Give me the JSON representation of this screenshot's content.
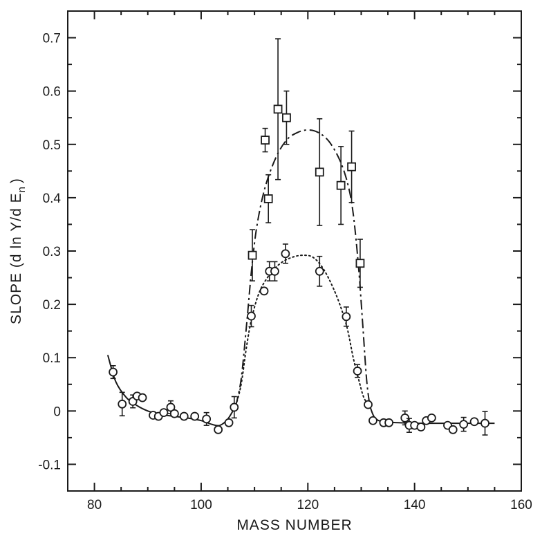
{
  "chart_data": {
    "type": "scatter",
    "xlabel": "MASS NUMBER",
    "ylabel": "SLOPE (d ln Y/d E",
    "ylabel_subscript": "n",
    "ylabel_close": ")",
    "xlim": [
      75,
      160
    ],
    "ylim": [
      -0.15,
      0.75
    ],
    "x_ticks": [
      80,
      100,
      120,
      140,
      160
    ],
    "x_tick_labels": [
      "80",
      "100",
      "120",
      "140",
      "160"
    ],
    "y_ticks": [
      -0.1,
      0,
      0.1,
      0.2,
      0.3,
      0.4,
      0.5,
      0.6,
      0.7
    ],
    "y_tick_labels": [
      "-0.1",
      "0",
      "0.1",
      "0.2",
      "0.3",
      "0.4",
      "0.5",
      "0.6",
      "0.7"
    ],
    "grid": false,
    "series": [
      {
        "marker": "circle",
        "points": [
          {
            "x": 83.5,
            "y": 0.073,
            "err": 0.012
          },
          {
            "x": 85.2,
            "y": 0.013,
            "err": 0.022
          },
          {
            "x": 87.2,
            "y": 0.018,
            "err": 0.012
          },
          {
            "x": 88.0,
            "y": 0.028,
            "err": 0
          },
          {
            "x": 89.0,
            "y": 0.025,
            "err": 0
          },
          {
            "x": 91.0,
            "y": -0.008,
            "err": 0
          },
          {
            "x": 92.0,
            "y": -0.01,
            "err": 0
          },
          {
            "x": 93.0,
            "y": -0.003,
            "err": 0
          },
          {
            "x": 94.3,
            "y": 0.007,
            "err": 0.012
          },
          {
            "x": 95.0,
            "y": -0.005,
            "err": 0
          },
          {
            "x": 96.8,
            "y": -0.01,
            "err": 0
          },
          {
            "x": 98.8,
            "y": -0.01,
            "err": 0
          },
          {
            "x": 101.0,
            "y": -0.015,
            "err": 0.012
          },
          {
            "x": 103.2,
            "y": -0.035,
            "err": 0
          },
          {
            "x": 105.2,
            "y": -0.022,
            "err": 0
          },
          {
            "x": 106.2,
            "y": 0.007,
            "err": 0.02
          },
          {
            "x": 109.4,
            "y": 0.178,
            "err": 0.02
          },
          {
            "x": 111.8,
            "y": 0.225,
            "err": 0
          },
          {
            "x": 112.8,
            "y": 0.262,
            "err": 0.018
          },
          {
            "x": 113.8,
            "y": 0.262,
            "err": 0.018
          },
          {
            "x": 115.8,
            "y": 0.295,
            "err": 0.018
          },
          {
            "x": 122.2,
            "y": 0.262,
            "err": 0.028
          },
          {
            "x": 127.2,
            "y": 0.177,
            "err": 0.018
          },
          {
            "x": 129.3,
            "y": 0.075,
            "err": 0.012
          },
          {
            "x": 131.3,
            "y": 0.012,
            "err": 0
          },
          {
            "x": 132.2,
            "y": -0.018,
            "err": 0
          },
          {
            "x": 134.2,
            "y": -0.022,
            "err": 0
          },
          {
            "x": 135.2,
            "y": -0.022,
            "err": 0
          },
          {
            "x": 138.2,
            "y": -0.013,
            "err": 0.013
          },
          {
            "x": 139.0,
            "y": -0.027,
            "err": 0.013
          },
          {
            "x": 140.0,
            "y": -0.027,
            "err": 0
          },
          {
            "x": 141.2,
            "y": -0.03,
            "err": 0
          },
          {
            "x": 142.2,
            "y": -0.018,
            "err": 0
          },
          {
            "x": 143.2,
            "y": -0.013,
            "err": 0
          },
          {
            "x": 146.2,
            "y": -0.027,
            "err": 0
          },
          {
            "x": 147.2,
            "y": -0.035,
            "err": 0
          },
          {
            "x": 149.2,
            "y": -0.025,
            "err": 0.013
          },
          {
            "x": 151.2,
            "y": -0.02,
            "err": 0
          },
          {
            "x": 153.2,
            "y": -0.023,
            "err": 0.022
          }
        ]
      },
      {
        "marker": "square",
        "points": [
          {
            "x": 109.6,
            "y": 0.292,
            "err": 0.048
          },
          {
            "x": 112.0,
            "y": 0.508,
            "err": 0.022
          },
          {
            "x": 112.6,
            "y": 0.398,
            "err": 0.045
          },
          {
            "x": 114.4,
            "y": 0.566,
            "err": 0.132
          },
          {
            "x": 116.0,
            "y": 0.55,
            "err": 0.05
          },
          {
            "x": 122.2,
            "y": 0.448,
            "err": 0.1
          },
          {
            "x": 126.2,
            "y": 0.423,
            "err": 0.073
          },
          {
            "x": 128.2,
            "y": 0.458,
            "err": 0.067
          },
          {
            "x": 129.8,
            "y": 0.277,
            "err": 0.045
          }
        ]
      }
    ],
    "curves": [
      {
        "style": "solid",
        "points": [
          [
            82.5,
            0.105
          ],
          [
            84,
            0.055
          ],
          [
            86,
            0.025
          ],
          [
            88,
            0.01
          ],
          [
            90,
            0.0
          ],
          [
            92,
            -0.006
          ],
          [
            95,
            -0.01
          ],
          [
            98,
            -0.014
          ],
          [
            100,
            -0.018
          ],
          [
            102,
            -0.025
          ],
          [
            103.5,
            -0.027
          ],
          [
            105,
            -0.015
          ],
          [
            106.5,
            0.01
          ]
        ]
      },
      {
        "style": "dash-dot",
        "points": [
          [
            106.5,
            0.01
          ],
          [
            107.5,
            0.06
          ],
          [
            108.5,
            0.16
          ],
          [
            109.5,
            0.27
          ],
          [
            110.5,
            0.35
          ],
          [
            112,
            0.42
          ],
          [
            114,
            0.475
          ],
          [
            116,
            0.508
          ],
          [
            118,
            0.522
          ],
          [
            120,
            0.527
          ],
          [
            122,
            0.522
          ],
          [
            124,
            0.505
          ],
          [
            126,
            0.47
          ],
          [
            127.5,
            0.425
          ],
          [
            128.5,
            0.37
          ],
          [
            129.5,
            0.27
          ],
          [
            130.3,
            0.16
          ],
          [
            131,
            0.06
          ],
          [
            131.6,
            0.01
          ]
        ]
      },
      {
        "style": "dotted",
        "points": [
          [
            106.5,
            0.01
          ],
          [
            107.5,
            0.05
          ],
          [
            108.5,
            0.12
          ],
          [
            109.5,
            0.175
          ],
          [
            111,
            0.225
          ],
          [
            113,
            0.258
          ],
          [
            115,
            0.278
          ],
          [
            117,
            0.288
          ],
          [
            119,
            0.292
          ],
          [
            121,
            0.288
          ],
          [
            123,
            0.265
          ],
          [
            125,
            0.225
          ],
          [
            126.5,
            0.185
          ],
          [
            127.5,
            0.15
          ],
          [
            128.5,
            0.1
          ],
          [
            129.5,
            0.06
          ],
          [
            130.5,
            0.025
          ],
          [
            131.6,
            0.01
          ]
        ]
      },
      {
        "style": "solid",
        "points": [
          [
            131.6,
            0.01
          ],
          [
            132.5,
            -0.012
          ],
          [
            134,
            -0.02
          ],
          [
            137,
            -0.022
          ],
          [
            140,
            -0.023
          ],
          [
            145,
            -0.023
          ],
          [
            150,
            -0.023
          ],
          [
            155,
            -0.023
          ]
        ]
      }
    ]
  }
}
